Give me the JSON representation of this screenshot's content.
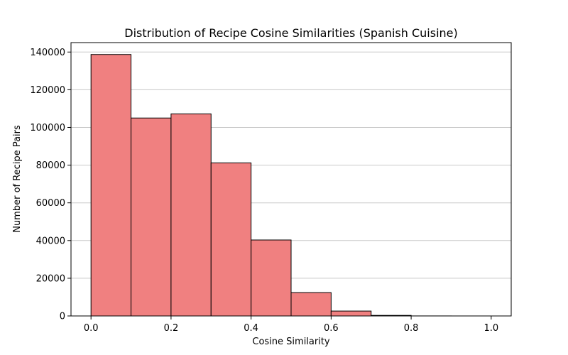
{
  "chart_data": {
    "type": "bar",
    "title": "Distribution of Recipe Cosine Similarities (Spanish Cuisine)",
    "xlabel": "Cosine Similarity",
    "ylabel": "Number of Recipe Pairs",
    "bins": [
      {
        "start": 0.0,
        "end": 0.1,
        "value": 138700
      },
      {
        "start": 0.1,
        "end": 0.2,
        "value": 105000
      },
      {
        "start": 0.2,
        "end": 0.3,
        "value": 107200
      },
      {
        "start": 0.3,
        "end": 0.4,
        "value": 81200
      },
      {
        "start": 0.4,
        "end": 0.5,
        "value": 40300
      },
      {
        "start": 0.5,
        "end": 0.6,
        "value": 12400
      },
      {
        "start": 0.6,
        "end": 0.7,
        "value": 2600
      },
      {
        "start": 0.7,
        "end": 0.8,
        "value": 300
      },
      {
        "start": 0.8,
        "end": 0.9,
        "value": 20
      },
      {
        "start": 0.9,
        "end": 1.0,
        "value": 5
      }
    ],
    "xlim": [
      -0.05,
      1.05
    ],
    "ylim": [
      0,
      145000
    ],
    "xticks": [
      "0.0",
      "0.2",
      "0.4",
      "0.6",
      "0.8",
      "1.0"
    ],
    "yticks": [
      "0",
      "20000",
      "40000",
      "60000",
      "80000",
      "100000",
      "120000",
      "140000"
    ],
    "grid": "horizontal",
    "bar_color": "#f08080",
    "edge_color": "#000000",
    "grid_color": "#c8c8c8"
  }
}
